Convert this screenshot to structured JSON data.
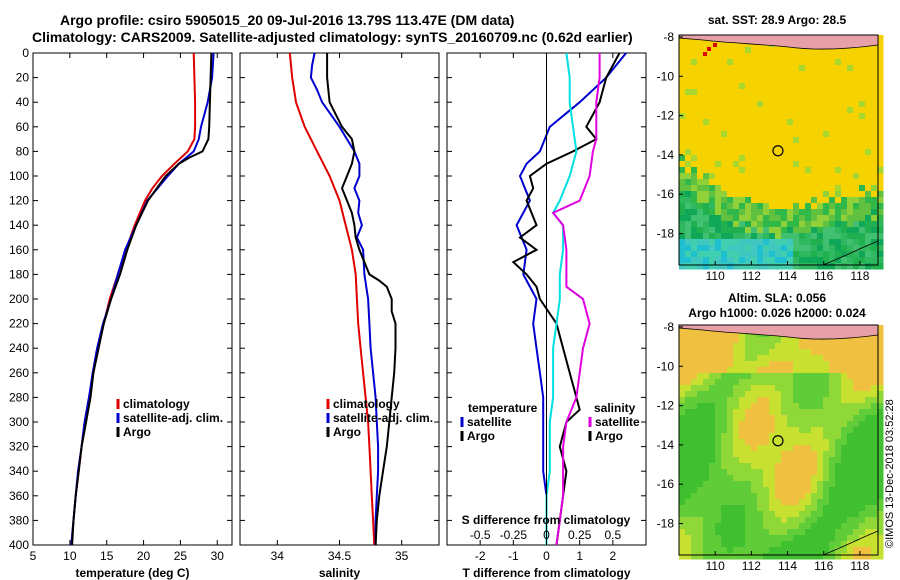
{
  "title_line1": "Argo profile: csiro 5905015_20 09-Jul-2016 13.79S 113.47E (DM data)",
  "title_line2": "Climatology: CARS2009. Satellite-adjusted climatology: synTS_20160709.nc (0.62d earlier)",
  "timestamp": "©IMOS 13-Dec-2018 03:52:28",
  "colors": {
    "clim": "#e00000",
    "sat": "#0000d0",
    "argo": "#000000",
    "sat_t": "#00e0e0",
    "sat_s": "#e000e0"
  },
  "chart_data": [
    {
      "id": "temperature",
      "type": "line",
      "xlabel": "temperature (deg C)",
      "ylabel": "",
      "xlim": [
        5,
        32
      ],
      "ylim": [
        400,
        0
      ],
      "xticks": [
        5,
        10,
        15,
        20,
        25,
        30
      ],
      "yticks": [
        0,
        20,
        40,
        60,
        80,
        100,
        120,
        140,
        160,
        180,
        200,
        220,
        240,
        260,
        280,
        300,
        320,
        340,
        360,
        380,
        400
      ],
      "legend": [
        "climatology",
        "satellite-adj. clim.",
        "Argo"
      ],
      "series": [
        {
          "name": "climatology",
          "color": "#e00000",
          "depth": [
            0,
            20,
            40,
            60,
            70,
            80,
            90,
            100,
            110,
            120,
            140,
            160,
            180,
            200,
            220,
            240,
            260,
            280,
            300,
            320,
            340,
            360,
            380,
            400
          ],
          "values": [
            26.8,
            26.9,
            27.0,
            27.0,
            26.9,
            26.0,
            24.2,
            22.5,
            21.2,
            20.2,
            18.8,
            17.6,
            16.5,
            15.4,
            14.6,
            13.8,
            13.2,
            12.6,
            12.0,
            11.6,
            11.2,
            10.8,
            10.5,
            10.2
          ]
        },
        {
          "name": "satellite-adj. clim.",
          "color": "#0000d0",
          "depth": [
            0,
            20,
            40,
            60,
            70,
            80,
            90,
            100,
            120,
            140,
            160,
            180,
            200,
            220,
            240,
            260,
            280,
            300,
            320,
            340,
            360,
            380,
            400
          ],
          "values": [
            29.5,
            29.3,
            28.7,
            27.8,
            27.5,
            26.8,
            24.8,
            23.3,
            20.5,
            19.0,
            17.5,
            16.5,
            15.6,
            14.5,
            13.7,
            13.1,
            12.6,
            12.0,
            11.6,
            11.1,
            10.8,
            10.5,
            10.2
          ]
        },
        {
          "name": "Argo",
          "color": "#000000",
          "depth": [
            0,
            20,
            40,
            60,
            70,
            80,
            85,
            90,
            100,
            110,
            120,
            140,
            160,
            180,
            200,
            220,
            240,
            260,
            280,
            300,
            320,
            340,
            360,
            380,
            400
          ],
          "values": [
            29.2,
            29.1,
            29.0,
            28.9,
            28.8,
            28.0,
            26.2,
            24.8,
            23.0,
            21.8,
            20.6,
            19.0,
            17.8,
            16.8,
            15.6,
            14.6,
            13.9,
            13.2,
            12.8,
            12.2,
            11.6,
            11.2,
            10.8,
            10.5,
            10.3
          ]
        }
      ]
    },
    {
      "id": "salinity",
      "type": "line",
      "xlabel": "salinity",
      "xlim": [
        33.7,
        35.3
      ],
      "ylim": [
        400,
        0
      ],
      "xticks": [
        34,
        34.5,
        35
      ],
      "legend": [
        "climatology",
        "satellite-adj. clim.",
        "Argo"
      ],
      "series": [
        {
          "name": "climatology",
          "color": "#e00000",
          "depth": [
            0,
            20,
            40,
            60,
            80,
            100,
            120,
            140,
            160,
            180,
            200,
            220,
            240,
            260,
            280,
            300,
            320,
            340,
            360,
            380,
            400
          ],
          "values": [
            34.1,
            34.12,
            34.15,
            34.22,
            34.32,
            34.42,
            34.5,
            34.55,
            34.6,
            34.63,
            34.64,
            34.65,
            34.67,
            34.69,
            34.71,
            34.73,
            34.74,
            34.75,
            34.76,
            34.77,
            34.78
          ]
        },
        {
          "name": "satellite-adj. clim.",
          "color": "#0000d0",
          "depth": [
            0,
            10,
            20,
            30,
            40,
            60,
            80,
            90,
            100,
            110,
            120,
            130,
            140,
            150,
            160,
            180,
            200,
            220,
            240,
            260,
            280,
            300,
            320,
            340,
            360,
            380,
            400
          ],
          "values": [
            34.3,
            34.28,
            34.27,
            34.32,
            34.36,
            34.5,
            34.62,
            34.66,
            34.66,
            34.62,
            34.66,
            34.65,
            34.68,
            34.64,
            34.69,
            34.7,
            34.73,
            34.74,
            34.75,
            34.77,
            34.79,
            34.8,
            34.81,
            34.81,
            34.8,
            34.79,
            34.79
          ]
        },
        {
          "name": "Argo",
          "color": "#000000",
          "depth": [
            0,
            20,
            40,
            60,
            70,
            80,
            90,
            100,
            110,
            120,
            130,
            140,
            150,
            160,
            170,
            180,
            185,
            190,
            200,
            210,
            220,
            240,
            260,
            280,
            300,
            320,
            340,
            360,
            380,
            400
          ],
          "values": [
            34.4,
            34.4,
            34.42,
            34.52,
            34.6,
            34.62,
            34.6,
            34.56,
            34.52,
            34.56,
            34.6,
            34.62,
            34.63,
            34.66,
            34.7,
            34.74,
            34.82,
            34.88,
            34.92,
            34.92,
            34.95,
            34.95,
            34.94,
            34.92,
            34.9,
            34.88,
            34.85,
            34.82,
            34.8,
            34.79
          ]
        }
      ]
    },
    {
      "id": "difference",
      "type": "line",
      "xlabel": "T difference from climatology",
      "x2label": "S difference from climatology",
      "xlim": [
        -3,
        3
      ],
      "ylim": [
        400,
        0
      ],
      "xticks": [
        -2,
        -1,
        0,
        1,
        2
      ],
      "x2ticks": [
        "-0.5",
        "-0.25",
        "0",
        "0.25",
        "0.5"
      ],
      "x2tick_positions": [
        -2,
        -1,
        0,
        1,
        2
      ],
      "legend_left_title": "temperature",
      "legend_right_title": "salinity",
      "legend_items": [
        "satellite",
        "Argo"
      ],
      "series": [
        {
          "name": "T satellite",
          "color": "#0000d0",
          "depth": [
            0,
            20,
            40,
            60,
            80,
            90,
            100,
            120,
            140,
            160,
            180,
            200,
            220,
            240,
            260,
            280,
            300,
            320,
            340,
            360,
            380,
            400
          ],
          "values": [
            2.4,
            1.8,
            1.0,
            0.1,
            -0.2,
            -0.6,
            -0.8,
            -0.5,
            -0.9,
            -0.6,
            -0.7,
            -0.3,
            -0.4,
            -0.3,
            -0.2,
            -0.1,
            -0.1,
            -0.1,
            -0.1,
            0.0,
            0.0,
            0.0
          ]
        },
        {
          "name": "T Argo",
          "color": "#000000",
          "depth": [
            0,
            20,
            40,
            60,
            70,
            80,
            90,
            100,
            110,
            120,
            140,
            150,
            160,
            170,
            180,
            190,
            200,
            220,
            240,
            260,
            280,
            290,
            300,
            320,
            340,
            360,
            380,
            400
          ],
          "values": [
            2.2,
            1.8,
            1.6,
            1.2,
            1.5,
            0.8,
            0.0,
            -0.5,
            -0.4,
            -0.6,
            -0.3,
            -0.8,
            -0.3,
            -1.0,
            -0.6,
            -0.3,
            -0.2,
            0.3,
            0.5,
            0.7,
            0.9,
            1.0,
            0.6,
            0.4,
            0.6,
            0.5,
            0.4,
            0.3
          ]
        },
        {
          "name": "S satellite",
          "color": "#00e0e0",
          "depth": [
            0,
            20,
            40,
            60,
            80,
            100,
            120,
            130,
            140,
            160,
            180,
            200,
            220,
            240,
            260,
            280,
            300,
            320,
            340,
            360,
            380,
            400
          ],
          "values": [
            0.6,
            0.7,
            0.7,
            0.8,
            0.9,
            0.7,
            0.4,
            0.2,
            0.5,
            0.5,
            0.4,
            0.4,
            0.3,
            0.2,
            0.2,
            0.2,
            0.1,
            0.1,
            0.1,
            0.0,
            0.0,
            0.0
          ]
        },
        {
          "name": "S Argo",
          "color": "#e000e0",
          "depth": [
            0,
            20,
            40,
            60,
            70,
            80,
            100,
            120,
            130,
            140,
            160,
            180,
            190,
            200,
            220,
            240,
            260,
            280,
            300,
            320,
            340,
            360,
            380,
            400
          ],
          "values": [
            1.6,
            1.6,
            1.5,
            1.5,
            1.5,
            1.4,
            1.3,
            1.0,
            0.2,
            0.5,
            0.6,
            0.6,
            0.6,
            1.1,
            1.3,
            1.1,
            1.0,
            0.9,
            0.6,
            0.5,
            0.5,
            0.5,
            0.4,
            0.3
          ]
        }
      ]
    },
    {
      "id": "sst_map",
      "type": "heatmap",
      "title": "sat. SST: 28.9 Argo: 28.5",
      "xlim": [
        108,
        119
      ],
      "ylim": [
        -19.6,
        -7.9
      ],
      "xticks": [
        110,
        112,
        114,
        116,
        118
      ],
      "yticks": [
        -8,
        -10,
        -12,
        -14,
        -16,
        -18
      ],
      "argo_position": {
        "lon": 113.47,
        "lat": -13.79
      }
    },
    {
      "id": "sla_map",
      "type": "heatmap",
      "title_line1": "Altim. SLA: 0.056",
      "title_line2": "Argo h1000: 0.026 h2000: 0.024",
      "xlim": [
        108,
        119
      ],
      "ylim": [
        -19.6,
        -7.9
      ],
      "xticks": [
        110,
        112,
        114,
        116,
        118
      ],
      "yticks": [
        -8,
        -10,
        -12,
        -14,
        -16,
        -18
      ],
      "argo_position": {
        "lon": 113.47,
        "lat": -13.79
      }
    }
  ]
}
